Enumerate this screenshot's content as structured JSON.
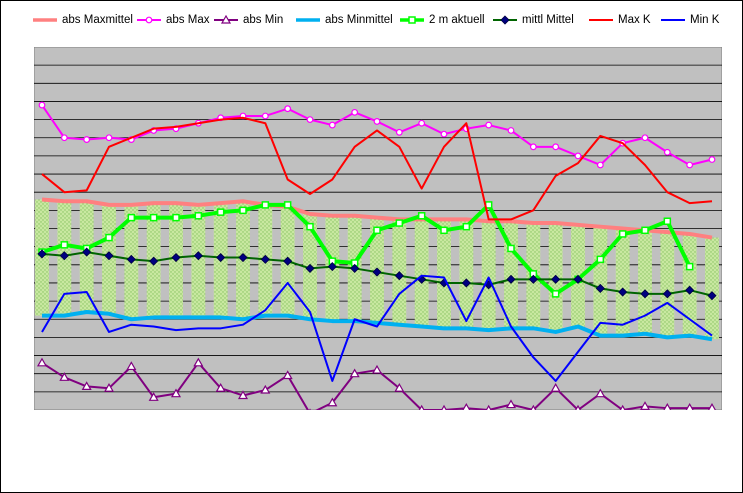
{
  "chart_data": {
    "type": "line",
    "y_tick_labels": "none",
    "x_tick_labels": "none",
    "grid": "horizontal",
    "plot_background": "#c0c0c0",
    "ylim": [
      0,
      20
    ],
    "x": [
      1,
      2,
      3,
      4,
      5,
      6,
      7,
      8,
      9,
      10,
      11,
      12,
      13,
      14,
      15,
      16,
      17,
      18,
      19,
      20,
      21,
      22,
      23,
      24,
      25,
      26,
      27,
      28,
      29,
      30,
      31
    ],
    "band": {
      "upper_series": "abs Maxmittel",
      "lower_series": "abs Minmittel",
      "fill": "#c8e8a0",
      "pattern": "dotted"
    },
    "series": [
      {
        "name": "abs Maxmittel",
        "color": "#ff8080",
        "marker": "none",
        "width": 4,
        "values": [
          11.6,
          11.5,
          11.5,
          11.3,
          11.3,
          11.4,
          11.4,
          11.3,
          11.4,
          11.5,
          11.3,
          11.2,
          10.8,
          10.7,
          10.7,
          10.6,
          10.5,
          10.5,
          10.5,
          10.5,
          10.4,
          10.4,
          10.3,
          10.3,
          10.2,
          10.1,
          10.0,
          9.9,
          9.8,
          9.7,
          9.5
        ]
      },
      {
        "name": "abs Max",
        "color": "#ff00ff",
        "marker": "circle",
        "width": 2,
        "values": [
          16.8,
          15.0,
          14.9,
          15.0,
          14.9,
          15.4,
          15.5,
          15.8,
          16.1,
          16.2,
          16.2,
          16.6,
          16.0,
          15.7,
          16.4,
          15.9,
          15.3,
          15.8,
          15.2,
          15.5,
          15.7,
          15.4,
          14.5,
          14.5,
          14.0,
          13.5,
          14.7,
          15.0,
          14.2,
          13.5,
          13.8
        ]
      },
      {
        "name": "abs Min",
        "color": "#800080",
        "marker": "triangle",
        "width": 2,
        "values": [
          2.6,
          1.8,
          1.3,
          1.2,
          2.4,
          0.7,
          0.9,
          2.6,
          1.2,
          0.8,
          1.1,
          1.9,
          -0.2,
          0.4,
          2.0,
          2.2,
          1.2,
          0.0,
          0.0,
          0.1,
          0.0,
          0.3,
          0.0,
          1.2,
          0.0,
          0.9,
          0.0,
          0.2,
          0.1,
          0.1,
          0.1
        ]
      },
      {
        "name": "abs Minmittel",
        "color": "#00b0f0",
        "marker": "none",
        "width": 4,
        "values": [
          5.2,
          5.2,
          5.4,
          5.3,
          5.0,
          5.1,
          5.1,
          5.1,
          5.1,
          5.0,
          5.2,
          5.2,
          5.0,
          4.9,
          4.9,
          4.8,
          4.7,
          4.6,
          4.5,
          4.5,
          4.4,
          4.5,
          4.5,
          4.3,
          4.6,
          4.1,
          4.1,
          4.2,
          4.0,
          4.1,
          3.9
        ]
      },
      {
        "name": "2 m aktuell",
        "color": "#00ff00",
        "marker": "square",
        "width": 4,
        "values": [
          8.7,
          9.1,
          8.9,
          9.5,
          10.6,
          10.6,
          10.6,
          10.7,
          10.9,
          11.0,
          11.3,
          11.3,
          10.1,
          8.2,
          8.1,
          9.9,
          10.3,
          10.7,
          9.9,
          10.1,
          11.3,
          8.9,
          7.5,
          6.4,
          7.2,
          8.3,
          9.7,
          9.9,
          10.4,
          7.9,
          null
        ]
      },
      {
        "name": "mittl Mittel",
        "color": "#006400",
        "marker": "diamond",
        "width": 2,
        "values": [
          8.6,
          8.5,
          8.7,
          8.5,
          8.3,
          8.2,
          8.4,
          8.5,
          8.4,
          8.4,
          8.3,
          8.2,
          7.8,
          7.9,
          7.8,
          7.6,
          7.4,
          7.2,
          7.0,
          7.0,
          6.9,
          7.2,
          7.2,
          7.2,
          7.2,
          6.7,
          6.5,
          6.4,
          6.4,
          6.6,
          6.3
        ]
      },
      {
        "name": "Max K",
        "color": "#ff0000",
        "marker": "none",
        "width": 2,
        "values": [
          13.0,
          12.0,
          12.1,
          14.5,
          15.0,
          15.5,
          15.6,
          15.8,
          16.0,
          16.1,
          15.8,
          12.7,
          11.9,
          12.7,
          14.5,
          15.4,
          14.5,
          12.2,
          14.5,
          15.8,
          10.5,
          10.5,
          11.0,
          12.9,
          13.6,
          15.1,
          14.7,
          13.5,
          12.0,
          11.4,
          11.5
        ]
      },
      {
        "name": "Min K",
        "color": "#0000ff",
        "marker": "none",
        "width": 2,
        "values": [
          4.3,
          6.4,
          6.5,
          4.3,
          4.7,
          4.6,
          4.4,
          4.5,
          4.5,
          4.7,
          5.5,
          7.0,
          5.4,
          1.6,
          5.0,
          4.6,
          6.4,
          7.4,
          7.3,
          4.9,
          7.3,
          4.6,
          2.9,
          1.6,
          3.2,
          4.8,
          4.7,
          5.2,
          5.9,
          5.0,
          4.1
        ]
      }
    ]
  }
}
